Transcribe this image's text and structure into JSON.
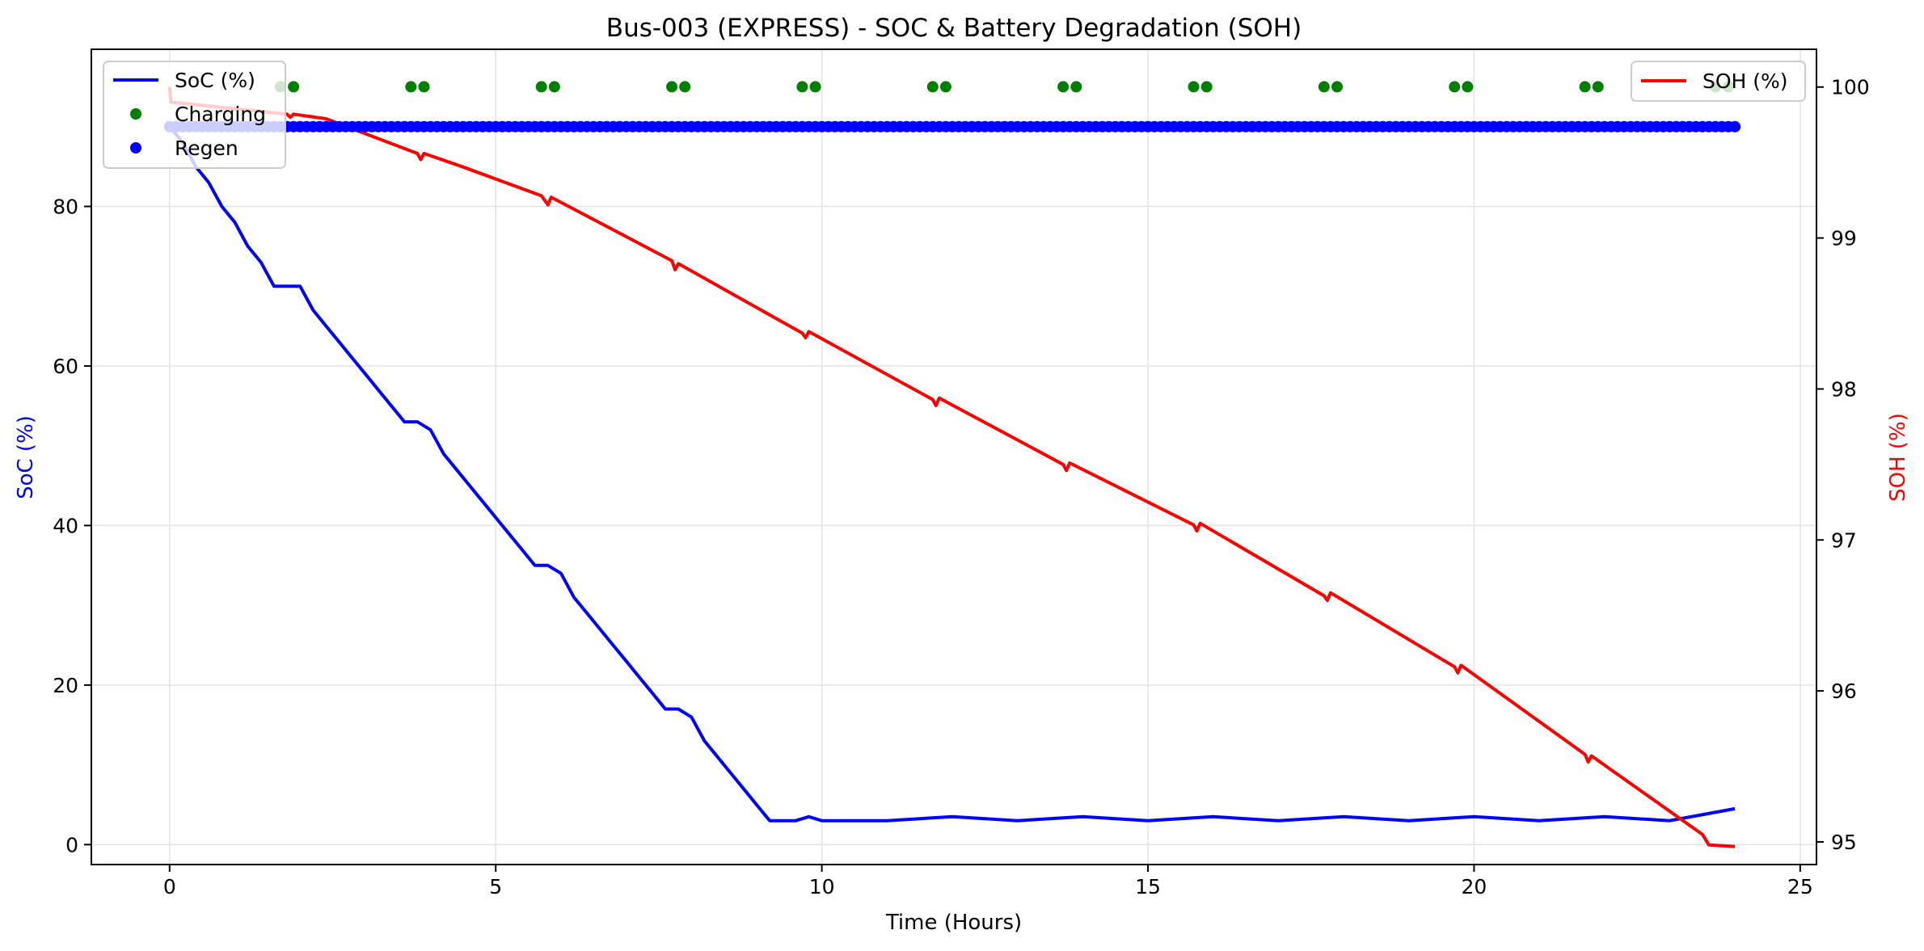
{
  "chart_data": {
    "type": "line",
    "title": "Bus-003 (EXPRESS) - SOC & Battery Degradation (SOH)",
    "xlabel": "Time (Hours)",
    "ylabel_left": "SoC (%)",
    "ylabel_right": "SOH (%)",
    "xlim": [
      -1.2,
      25.25
    ],
    "ylim_left": [
      -2.5,
      99.7
    ],
    "ylim_right": [
      94.85,
      100.25
    ],
    "x_ticks": [
      0,
      5,
      10,
      15,
      20,
      25
    ],
    "y_left_ticks": [
      0,
      20,
      40,
      60,
      80
    ],
    "y_right_ticks": [
      95,
      96,
      97,
      98,
      99,
      100
    ],
    "grid": true,
    "colors": {
      "soc": "#0000ff",
      "soh": "#ff0000",
      "charging": "#008000",
      "regen": "#0000ff"
    },
    "legend_left": {
      "placement": "upper-left",
      "entries": [
        {
          "label": "SoC (%)",
          "kind": "line",
          "color": "#0000ff"
        },
        {
          "label": "Charging",
          "kind": "marker",
          "color": "#008000"
        },
        {
          "label": "Regen",
          "kind": "marker",
          "color": "#0000ff"
        }
      ]
    },
    "legend_right": {
      "placement": "upper-right",
      "entries": [
        {
          "label": "SOH (%)",
          "kind": "line",
          "color": "#ff0000"
        }
      ]
    },
    "series": [
      {
        "name": "SoC (%)",
        "axis": "left",
        "points": [
          [
            0,
            90
          ],
          [
            0.2,
            88
          ],
          [
            0.4,
            85
          ],
          [
            0.6,
            83
          ],
          [
            0.8,
            80
          ],
          [
            1.0,
            78
          ],
          [
            1.2,
            75
          ],
          [
            1.4,
            73
          ],
          [
            1.6,
            70
          ],
          [
            1.8,
            70
          ],
          [
            2.0,
            70
          ],
          [
            2.2,
            67
          ],
          [
            2.4,
            65
          ],
          [
            2.6,
            63
          ],
          [
            2.8,
            61
          ],
          [
            3.0,
            59
          ],
          [
            3.2,
            57
          ],
          [
            3.4,
            55
          ],
          [
            3.6,
            53
          ],
          [
            3.8,
            53
          ],
          [
            4.0,
            52
          ],
          [
            4.2,
            49
          ],
          [
            4.4,
            47
          ],
          [
            4.6,
            45
          ],
          [
            4.8,
            43
          ],
          [
            5.0,
            41
          ],
          [
            5.2,
            39
          ],
          [
            5.4,
            37
          ],
          [
            5.6,
            35
          ],
          [
            5.8,
            35
          ],
          [
            6.0,
            34
          ],
          [
            6.2,
            31
          ],
          [
            6.4,
            29
          ],
          [
            6.6,
            27
          ],
          [
            6.8,
            25
          ],
          [
            7.0,
            23
          ],
          [
            7.2,
            21
          ],
          [
            7.4,
            19
          ],
          [
            7.6,
            17
          ],
          [
            7.8,
            17
          ],
          [
            8.0,
            16
          ],
          [
            8.2,
            13
          ],
          [
            8.4,
            11
          ],
          [
            8.6,
            9
          ],
          [
            8.8,
            7
          ],
          [
            9.0,
            5
          ],
          [
            9.2,
            3
          ],
          [
            9.4,
            3
          ],
          [
            9.6,
            3
          ],
          [
            9.8,
            3.5
          ],
          [
            10,
            3
          ],
          [
            11,
            3
          ],
          [
            12,
            3.5
          ],
          [
            13,
            3
          ],
          [
            14,
            3.5
          ],
          [
            15,
            3
          ],
          [
            16,
            3.5
          ],
          [
            17,
            3
          ],
          [
            18,
            3.5
          ],
          [
            19,
            3
          ],
          [
            20,
            3.5
          ],
          [
            21,
            3
          ],
          [
            22,
            3.5
          ],
          [
            23,
            3
          ],
          [
            24,
            4.5
          ]
        ]
      },
      {
        "name": "SOH (%)",
        "axis": "right",
        "points": [
          [
            0,
            100.0
          ],
          [
            0.02,
            99.9
          ],
          [
            1.8,
            99.82
          ],
          [
            1.85,
            99.8
          ],
          [
            1.9,
            99.82
          ],
          [
            2.4,
            99.79
          ],
          [
            3.8,
            99.56
          ],
          [
            3.85,
            99.52
          ],
          [
            3.9,
            99.56
          ],
          [
            4.5,
            99.47
          ],
          [
            5.7,
            99.28
          ],
          [
            5.8,
            99.22
          ],
          [
            5.85,
            99.27
          ],
          [
            7.7,
            98.85
          ],
          [
            7.75,
            98.79
          ],
          [
            7.8,
            98.83
          ],
          [
            9.7,
            98.37
          ],
          [
            9.75,
            98.34
          ],
          [
            9.8,
            98.38
          ],
          [
            11.7,
            97.93
          ],
          [
            11.75,
            97.89
          ],
          [
            11.8,
            97.94
          ],
          [
            13.7,
            97.5
          ],
          [
            13.75,
            97.46
          ],
          [
            13.8,
            97.51
          ],
          [
            15.7,
            97.1
          ],
          [
            15.75,
            97.06
          ],
          [
            15.8,
            97.11
          ],
          [
            17.7,
            96.63
          ],
          [
            17.75,
            96.6
          ],
          [
            17.8,
            96.65
          ],
          [
            19.7,
            96.16
          ],
          [
            19.75,
            96.12
          ],
          [
            19.8,
            96.17
          ],
          [
            21.7,
            95.58
          ],
          [
            21.75,
            95.53
          ],
          [
            21.8,
            95.57
          ],
          [
            23.5,
            95.05
          ],
          [
            23.6,
            94.98
          ],
          [
            24.0,
            94.97
          ]
        ]
      }
    ],
    "charging_events": {
      "name": "Charging",
      "axis": "left",
      "y": 95,
      "x": [
        1.7,
        1.9,
        3.7,
        3.9,
        5.7,
        5.9,
        7.7,
        7.9,
        9.7,
        9.9,
        11.7,
        11.9,
        13.7,
        13.9,
        15.7,
        15.9,
        17.7,
        17.9,
        19.7,
        19.9,
        21.7,
        21.9,
        23.7,
        23.9
      ]
    },
    "regen_events": {
      "name": "Regen",
      "axis": "left",
      "y": 90,
      "x_start": 0,
      "x_end": 24,
      "step": 0.1
    }
  }
}
